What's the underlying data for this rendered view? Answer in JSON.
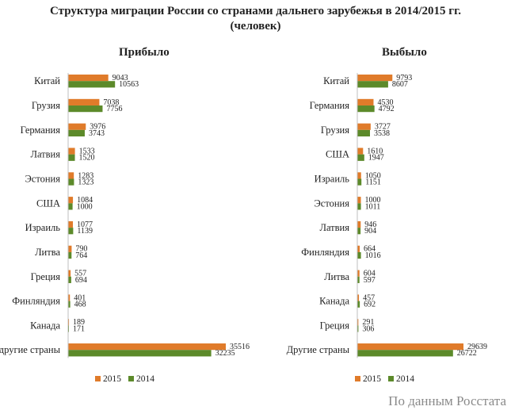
{
  "title_line1": "Структура миграции России со странами дальнего зарубежья в 2014/2015 гг.",
  "title_line2": "(человек)",
  "source": "По данным Росстата",
  "colors": {
    "s2015": "#E07B2A",
    "s2014": "#5C8A2A"
  },
  "chart_data": [
    {
      "type": "bar",
      "orientation": "horizontal",
      "title": "Прибыло",
      "categories": [
        "Китай",
        "Грузия",
        "Германия",
        "Латвия",
        "Эстония",
        "США",
        "Израиль",
        "Литва",
        "Греция",
        "Финляндия",
        "Канада",
        "другие страны"
      ],
      "series": [
        {
          "name": "2015",
          "values": [
            9043,
            7038,
            3976,
            1533,
            1283,
            1084,
            1077,
            790,
            557,
            401,
            189,
            35516
          ]
        },
        {
          "name": "2014",
          "values": [
            10563,
            7756,
            3743,
            1520,
            1323,
            1000,
            1139,
            764,
            694,
            468,
            171,
            32235
          ]
        }
      ],
      "legend": "bottom",
      "grid": false
    },
    {
      "type": "bar",
      "orientation": "horizontal",
      "title": "Выбыло",
      "categories": [
        "Китай",
        "Германия",
        "Грузия",
        "США",
        "Израиль",
        "Эстония",
        "Латвия",
        "Финляндия",
        "Литва",
        "Канада",
        "Греция",
        "Другие страны"
      ],
      "series": [
        {
          "name": "2015",
          "values": [
            9793,
            4530,
            3727,
            1610,
            1050,
            1000,
            946,
            664,
            604,
            457,
            291,
            29639
          ]
        },
        {
          "name": "2014",
          "values": [
            8607,
            4792,
            3538,
            1947,
            1151,
            1011,
            904,
            1016,
            597,
            692,
            306,
            26722
          ]
        }
      ],
      "legend": "bottom",
      "grid": false
    }
  ]
}
